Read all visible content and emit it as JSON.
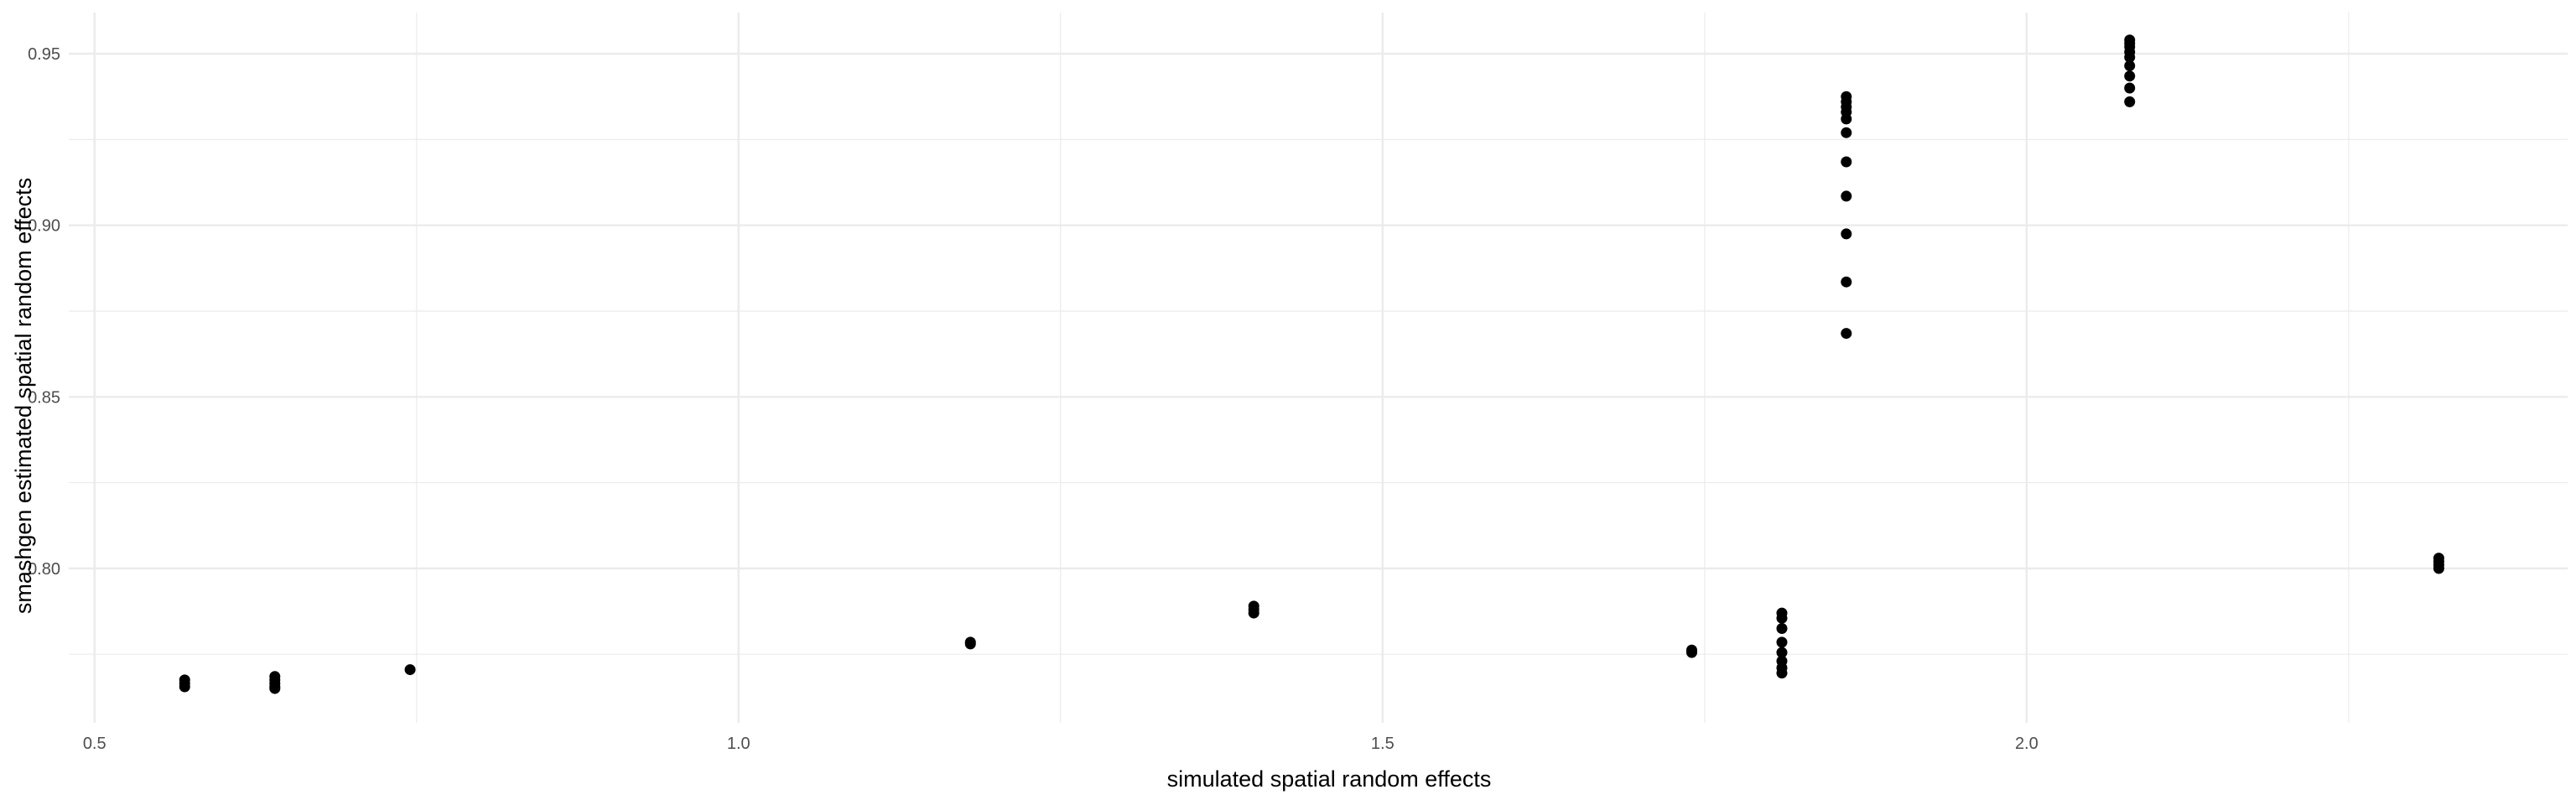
{
  "chart_data": {
    "type": "scatter",
    "title": "",
    "xlabel": "simulated spatial random effects",
    "ylabel": "smashgen estimated spatial random effects",
    "xlim": [
      0.48,
      2.42
    ],
    "ylim": [
      0.755,
      0.962
    ],
    "x_ticks": [
      0.5,
      1.0,
      1.5,
      2.0
    ],
    "x_tick_labels": [
      "0.5",
      "1.0",
      "1.5",
      "2.0"
    ],
    "y_ticks": [
      0.8,
      0.85,
      0.9,
      0.95
    ],
    "y_tick_labels": [
      "0.80",
      "0.85",
      "0.90",
      "0.95"
    ],
    "grid": true,
    "point_color": "#000000",
    "gridline_color": "#ebebeb",
    "points": [
      {
        "x": 0.57,
        "y": 0.7675
      },
      {
        "x": 0.57,
        "y": 0.7665
      },
      {
        "x": 0.57,
        "y": 0.7655
      },
      {
        "x": 0.64,
        "y": 0.7685
      },
      {
        "x": 0.64,
        "y": 0.7675
      },
      {
        "x": 0.64,
        "y": 0.7665
      },
      {
        "x": 0.64,
        "y": 0.7655
      },
      {
        "x": 0.64,
        "y": 0.765
      },
      {
        "x": 0.745,
        "y": 0.7705
      },
      {
        "x": 1.18,
        "y": 0.7785
      },
      {
        "x": 1.18,
        "y": 0.778
      },
      {
        "x": 1.4,
        "y": 0.789
      },
      {
        "x": 1.4,
        "y": 0.788
      },
      {
        "x": 1.4,
        "y": 0.787
      },
      {
        "x": 1.74,
        "y": 0.7762
      },
      {
        "x": 1.74,
        "y": 0.7755
      },
      {
        "x": 1.81,
        "y": 0.787
      },
      {
        "x": 1.81,
        "y": 0.7855
      },
      {
        "x": 1.81,
        "y": 0.7825
      },
      {
        "x": 1.81,
        "y": 0.7785
      },
      {
        "x": 1.81,
        "y": 0.7755
      },
      {
        "x": 1.81,
        "y": 0.773
      },
      {
        "x": 1.81,
        "y": 0.771
      },
      {
        "x": 1.81,
        "y": 0.7695
      },
      {
        "x": 1.86,
        "y": 0.9375
      },
      {
        "x": 1.86,
        "y": 0.936
      },
      {
        "x": 1.86,
        "y": 0.9345
      },
      {
        "x": 1.86,
        "y": 0.933
      },
      {
        "x": 1.86,
        "y": 0.931
      },
      {
        "x": 1.86,
        "y": 0.927
      },
      {
        "x": 1.86,
        "y": 0.9185
      },
      {
        "x": 1.86,
        "y": 0.9085
      },
      {
        "x": 1.86,
        "y": 0.8975
      },
      {
        "x": 1.86,
        "y": 0.8835
      },
      {
        "x": 1.86,
        "y": 0.8685
      },
      {
        "x": 2.08,
        "y": 0.954
      },
      {
        "x": 2.08,
        "y": 0.953
      },
      {
        "x": 2.08,
        "y": 0.952
      },
      {
        "x": 2.08,
        "y": 0.9505
      },
      {
        "x": 2.08,
        "y": 0.949
      },
      {
        "x": 2.08,
        "y": 0.9465
      },
      {
        "x": 2.08,
        "y": 0.9435
      },
      {
        "x": 2.08,
        "y": 0.94
      },
      {
        "x": 2.08,
        "y": 0.936
      },
      {
        "x": 2.32,
        "y": 0.803
      },
      {
        "x": 2.32,
        "y": 0.802
      },
      {
        "x": 2.32,
        "y": 0.801
      },
      {
        "x": 2.32,
        "y": 0.8
      }
    ]
  }
}
